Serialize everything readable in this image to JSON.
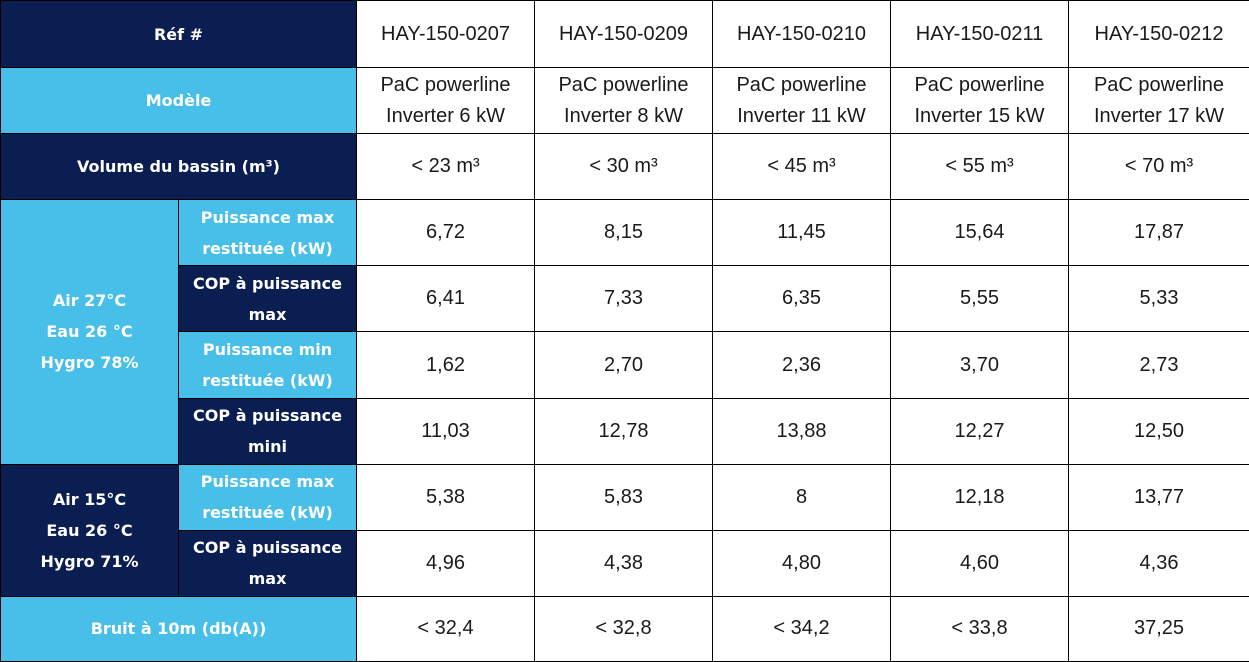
{
  "headers": {
    "ref": "Réf #",
    "modele": "Modèle",
    "volume": "Volume du bassin (m³)",
    "group_a": [
      "Air 27°C",
      "Eau 26 °C",
      "Hygro 78%"
    ],
    "group_a_rows": [
      [
        "Puissance max",
        "restituée (kW)"
      ],
      [
        "COP à puissance",
        "max"
      ],
      [
        "Puissance min",
        "restituée (kW)"
      ],
      [
        "COP à puissance",
        "mini"
      ]
    ],
    "group_b": [
      "Air 15°C",
      "Eau 26 °C",
      "Hygro 71%"
    ],
    "group_b_rows": [
      [
        "Puissance max",
        "restituée (kW)"
      ],
      [
        "COP à puissance",
        "max"
      ]
    ],
    "bruit": "Bruit à 10m (db(A))"
  },
  "columns": [
    {
      "ref": "HAY-150-0207",
      "modele": [
        "PaC powerline",
        "Inverter 6 kW"
      ],
      "volume": "< 23 m³",
      "a": [
        "6,72",
        "6,41",
        "1,62",
        "11,03"
      ],
      "b": [
        "5,38",
        "4,96"
      ],
      "bruit": "< 32,4"
    },
    {
      "ref": "HAY-150-0209",
      "modele": [
        "PaC powerline",
        "Inverter 8 kW"
      ],
      "volume": "< 30 m³",
      "a": [
        "8,15",
        "7,33",
        "2,70",
        "12,78"
      ],
      "b": [
        "5,83",
        "4,38"
      ],
      "bruit": "< 32,8"
    },
    {
      "ref": "HAY-150-0210",
      "modele": [
        "PaC powerline",
        "Inverter 11 kW"
      ],
      "volume": "< 45 m³",
      "a": [
        "11,45",
        "6,35",
        "2,36",
        "13,88"
      ],
      "b": [
        "8",
        "4,80"
      ],
      "bruit": "< 34,2"
    },
    {
      "ref": "HAY-150-0211",
      "modele": [
        "PaC powerline",
        "Inverter 15 kW"
      ],
      "volume": "< 55 m³",
      "a": [
        "15,64",
        "5,55",
        "3,70",
        "12,27"
      ],
      "b": [
        "12,18",
        "4,60"
      ],
      "bruit": "< 33,8"
    },
    {
      "ref": "HAY-150-0212",
      "modele": [
        "PaC powerline",
        "Inverter 17 kW"
      ],
      "volume": "< 70 m³",
      "a": [
        "17,87",
        "5,33",
        "2,73",
        "12,50"
      ],
      "b": [
        "13,77",
        "4,36"
      ],
      "bruit": "37,25"
    }
  ],
  "colors": {
    "dark_header": "#0b1e52",
    "light_header": "#48bfe8",
    "border": "#000000"
  }
}
